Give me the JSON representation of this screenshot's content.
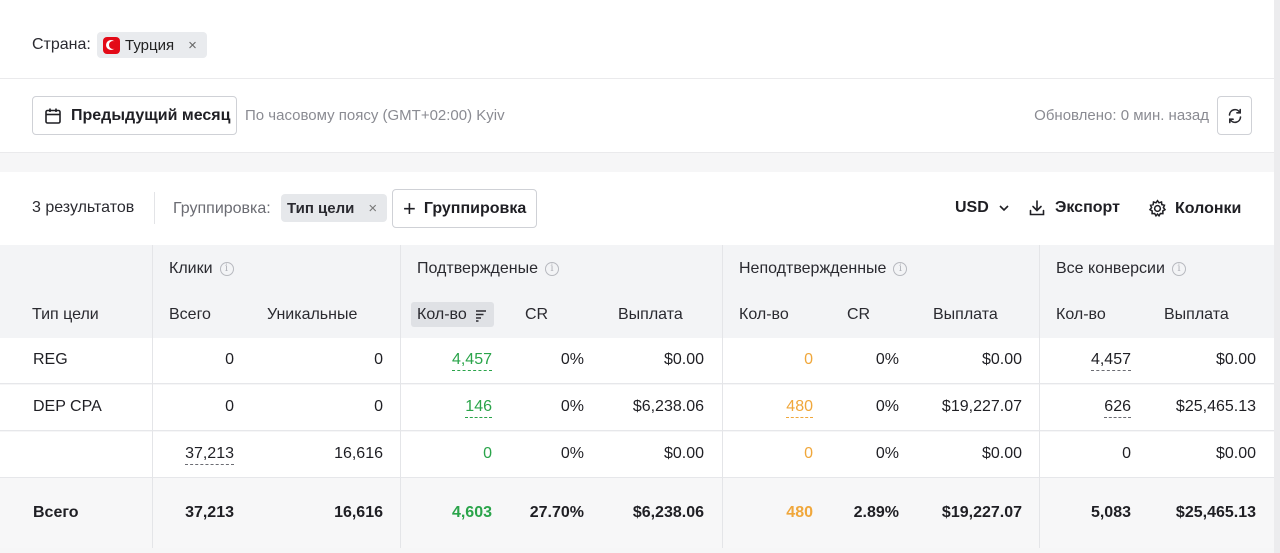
{
  "filter": {
    "label": "Страна:",
    "chip_label": "Турция",
    "chip_remove": "×"
  },
  "date_bar": {
    "period_label": "Предыдущий месяц",
    "timezone_text": "По часовому поясу (GMT+02:00) Kyiv",
    "updated_text": "Обновлено: 0 мин. назад"
  },
  "toolbar": {
    "results_count": "3 результатов",
    "grouping_label": "Группировка:",
    "grouping_chip": "Тип цели",
    "grouping_remove": "×",
    "add_grouping_label": "Группировка",
    "currency": "USD",
    "export_label": "Экспорт",
    "columns_label": "Колонки"
  },
  "table": {
    "groups": {
      "clicks": "Клики",
      "confirmed": "Подтвержденые",
      "unconfirmed": "Неподтвержденные",
      "all": "Все конверсии"
    },
    "columns": {
      "goal_type": "Тип цели",
      "clicks_total": "Всего",
      "clicks_unique": "Уникальные",
      "conf_qty": "Кол-во",
      "conf_cr": "CR",
      "conf_payout": "Выплата",
      "unconf_qty": "Кол-во",
      "unconf_cr": "CR",
      "unconf_payout": "Выплата",
      "all_qty": "Кол-во",
      "all_payout": "Выплата"
    },
    "rows": [
      {
        "goal": "REG",
        "clicks_total": "0",
        "clicks_unique": "0",
        "conf_qty": "4,457",
        "conf_cr": "0%",
        "conf_payout": "$0.00",
        "unconf_qty": "0",
        "unconf_cr": "0%",
        "unconf_payout": "$0.00",
        "all_qty": "4,457",
        "all_payout": "$0.00"
      },
      {
        "goal": "DEP CPA",
        "clicks_total": "0",
        "clicks_unique": "0",
        "conf_qty": "146",
        "conf_cr": "0%",
        "conf_payout": "$6,238.06",
        "unconf_qty": "480",
        "unconf_cr": "0%",
        "unconf_payout": "$19,227.07",
        "all_qty": "626",
        "all_payout": "$25,465.13"
      },
      {
        "goal": "",
        "clicks_total": "37,213",
        "clicks_unique": "16,616",
        "conf_qty": "0",
        "conf_cr": "0%",
        "conf_payout": "$0.00",
        "unconf_qty": "0",
        "unconf_cr": "0%",
        "unconf_payout": "$0.00",
        "all_qty": "0",
        "all_payout": "$0.00"
      }
    ],
    "total": {
      "goal": "Всего",
      "clicks_total": "37,213",
      "clicks_unique": "16,616",
      "conf_qty": "4,603",
      "conf_cr": "27.70%",
      "conf_payout": "$6,238.06",
      "unconf_qty": "480",
      "unconf_cr": "2.89%",
      "unconf_payout": "$19,227.07",
      "all_qty": "5,083",
      "all_payout": "$25,465.13"
    }
  },
  "colors": {
    "confirmed": "#2aa44a",
    "unconfirmed": "#f0a73b"
  }
}
